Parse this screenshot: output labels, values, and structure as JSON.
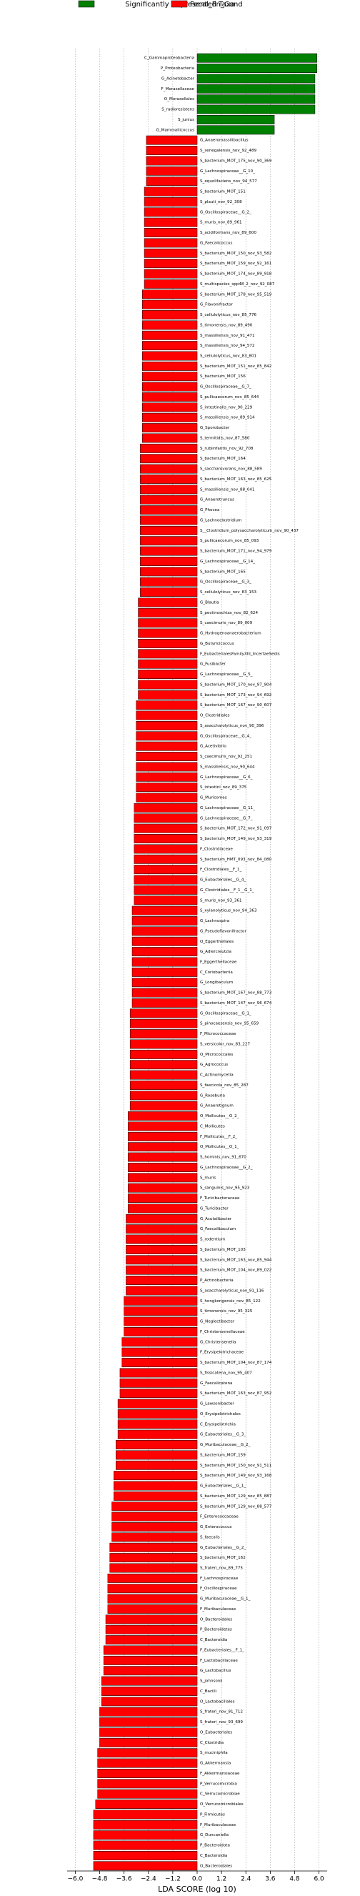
{
  "chart_data": {
    "type": "barh",
    "title": "Significantly Represented Taxa",
    "xlabel": "LDA SCORE (log 10)",
    "xlim": [
      -6.4,
      6.4
    ],
    "xticks": [
      {
        "value": -6.0,
        "label": "−6.0"
      },
      {
        "value": -4.8,
        "label": "−4.8"
      },
      {
        "value": -3.6,
        "label": "−3.6"
      },
      {
        "value": -2.4,
        "label": "−2.4"
      },
      {
        "value": -1.2,
        "label": "−1.2"
      },
      {
        "value": 0,
        "label": "0.0"
      },
      {
        "value": 1.2,
        "label": "1.2"
      },
      {
        "value": 2.4,
        "label": "2.4"
      },
      {
        "value": 3.6,
        "label": "3.6"
      },
      {
        "value": 4.8,
        "label": "4.8"
      },
      {
        "value": 6.0,
        "label": "6.0"
      }
    ],
    "grid": true,
    "series": [
      {
        "color": "#008000",
        "categories": [
          "C_Gammaproteobacteria",
          "P_Proteobacteria",
          "G_Acinetobacter",
          "F_Moraxellaceae",
          "O_Moraxellales",
          "S_radioresistens",
          "S_junius",
          "G_Mammaliicoccus"
        ],
        "values": [
          5.9,
          5.9,
          5.8,
          5.8,
          5.8,
          5.8,
          3.8,
          3.8
        ]
      },
      {
        "name": "Fecal_Fn_Cond",
        "color": "#ff0000",
        "categories": [
          "G_Anaeromassilibacillus",
          "S_senegalensis_nov_92_489",
          "S_bacterium_MOT_175_nov_90_369",
          "G_Lachnospiraceae__G_10_",
          "S_equolifaciens_nov_94_577",
          "S_bacterium_MOT_151",
          "S_plauti_nov_92_308",
          "G_Oscillospiraceae__G_2_",
          "S_muris_nov_89_961",
          "S_acidiformans_nov_89_600",
          "G_Faecalicoccus",
          "S_bacterium_MOT_150_nov_93_582",
          "S_bacterium_MOT_159_nov_92_161",
          "S_bacterium_MOT_174_nov_89_918",
          "S_multispecies_spp48_2_nov_92_087",
          "S_bacterium_MOT_178_nov_95_519",
          "G_Flavonifractor",
          "S_cellulolyticus_nov_85_776",
          "S_timonensis_nov_89_490",
          "S_massiliensis_nov_91_471",
          "S_massiliensis_nov_94_572",
          "S_cellulolyticus_nov_83_801",
          "S_bacterium_MOT_151_nov_85_842",
          "S_bacterium_MOT_156",
          "G_Oscillospiraceae__G_7_",
          "S_pullicaecorum_nov_85_644",
          "S_intestinalis_nov_90_229",
          "S_massiliensis_nov_89_914",
          "G_Sporobacter",
          "S_termitidis_nov_87_580",
          "S_rubiinfantis_nov_92_708",
          "S_bacterium_MOT_164",
          "S_saccharovorans_nov_88_589",
          "S_bacterium_MOT_163_nov_85_625",
          "S_massiliensis_nov_88_041",
          "G_Anaerotruncus",
          "G_Phocea",
          "G_Lachnoclostridium",
          "S__Clostridium_polysaccharolyticum_nov_90_437",
          "S_pullicaecorum_nov_85_093",
          "S_bacterium_MOT_171_nov_94_979",
          "G_Lachnospiraceae__G_14_",
          "S_bacterium_MOT_165",
          "G_Oscillospiraceae__G_3_",
          "S_cellulolyticus_nov_83_153",
          "G_Blautia",
          "S_pectinoschiza_nov_82_624",
          "S_caecimuris_nov_89_009",
          "G_Hydrogenoanaerobacterium",
          "G_Butyricicoccus",
          "F_EubacterialesFamilyXIII_IncertaeSedis",
          "G_Fusibacter",
          "G_Lachnospiraceae__G_5_",
          "S_bacterium_MOT_170_nov_97_904",
          "S_bacterium_MOT_173_nov_94_692",
          "S_bacterium_MOT_167_nov_90_607",
          "O_Clostridiales",
          "S_asaccharolyticus_nov_90_396",
          "G_Oscillospiraceae__G_4_",
          "G_Acetivibrio",
          "S_caecimuris_nov_92_251",
          "S_massiliensis_nov_90_644",
          "G_Lachnospiraceae__G_6_",
          "S_intestini_nov_89_375",
          "G_Muricomes",
          "G_Lachnospiraceae__G_11_",
          "G_Lachnospiraceae__G_7_",
          "S_bacterium_MOT_172_nov_91_097",
          "S_bacterium_MOT_149_nov_93_319",
          "F_Clostridiaceae",
          "S_bacterium_HMT_093_nov_84_080",
          "F_Clostridiales__F_1_",
          "G_Eubacteriales__G_4_",
          "G_Clostridiales__F_1__G_1_",
          "S_muris_nov_93_361",
          "S_xylanolyticus_nov_94_363",
          "G_Lachnospira",
          "G_Pseudoflavonifractor",
          "O_Eggerthellales",
          "G_Adlercreutzia",
          "F_Eggerthellaceae",
          "C_Coriobacteriia",
          "G_Longibaculum",
          "S_bacterium_MOT_167_nov_88_773",
          "S_bacterium_MOT_147_nov_96_674",
          "G_Oscillospiraceae__G_1_",
          "S_pinocaesensis_nov_95_659",
          "F_Micrococcaceae",
          "S_versicolor_nov_83_227",
          "O_Micrococcales",
          "G_Agrococcus",
          "C_Actinomycetia",
          "S_faecicola_nov_85_287",
          "G_Roseburia",
          "G_Anaerotignum",
          "O_Mollicutes__O_2_",
          "C_Mollicutes",
          "F_Mollicutes__F_2_",
          "O_Mollicutes__O_1_",
          "S_hominis_nov_91_670",
          "G_Lachnospiraceae__G_2_",
          "S_muris",
          "S_sanguinis_nov_95_923",
          "F_Turicibacteraceae",
          "G_Turicibacter",
          "G_Acutalibacter",
          "G_Faecalibaculum",
          "S_rodentium",
          "S_bacterium_MOT_103",
          "S_bacterium_MOT_163_nov_85_944",
          "S_bacterium_MOT_104_nov_89_022",
          "P_Actinobacteria",
          "S_asaccharolyticus_nov_91_116",
          "S_hongkongensis_nov_85_122",
          "S_timonensis_nov_95_325",
          "G_Neglectibacter",
          "F_Christensenellaceae",
          "G_Christensenella",
          "F_Erysipelotrichaceae",
          "S_bacterium_MOT_104_nov_87_174",
          "S_fissicatena_nov_95_407",
          "G_Faecalicatena",
          "S_bacterium_MOT_163_nov_87_952",
          "G_Lawsonibacter",
          "O_Erysipelotrichales",
          "C_Erysipelotrichia",
          "G_Eubacteriales__G_3_",
          "G_Muribaculaceae__G_2_",
          "S_bacterium_MOT_159",
          "S_bacterium_MOT_150_nov_91_511",
          "S_bacterium_MOT_149_nov_93_168",
          "G_Eubacteriales__G_1_",
          "S_bacterium_MOT_129_nov_85_887",
          "S_bacterium_MOT_129_nov_88_577",
          "F_Enterococcaceae",
          "G_Enterococcus",
          "S_faecalis",
          "G_Eubacteriales__G_2_",
          "S_bacterium_MOT_162",
          "S_frateri_nov_89_775",
          "F_Lachnospiraceae",
          "F_Oscillospiraceae",
          "G_Muribaculaceae__G_1_",
          "F_Muribaculaceae",
          "O_Bacteroidales",
          "P_Bacteroidetes",
          "C_Bacteroidia",
          "F_Eubacteriales__F_1_",
          "F_Lactobacillaceae",
          "G_Lactobacillus",
          "S_johnsonii",
          "C_Bacilli",
          "O_Lactobacillales",
          "S_frateri_nov_91_712",
          "S_frateri_nov_93_699",
          "O_Eubacteriales",
          "C_Clostridia",
          "S_muciniphila",
          "G_Akkermansia",
          "F_Akkermansiaceae",
          "P_Verrucomicrobia",
          "C_Verrucomicrobiae",
          "O_Verrucomicrobiales",
          "P_Firmicutes",
          "F_Muribaculaceae",
          "G_Duncaniella",
          "P_Bacteroidota",
          "C_Bacteroidia",
          "O_Bacteroidales"
        ],
        "values": [
          -2.5,
          -2.5,
          -2.5,
          -2.5,
          -2.5,
          -2.6,
          -2.6,
          -2.6,
          -2.6,
          -2.6,
          -2.6,
          -2.6,
          -2.6,
          -2.6,
          -2.6,
          -2.7,
          -2.7,
          -2.7,
          -2.7,
          -2.7,
          -2.7,
          -2.7,
          -2.7,
          -2.7,
          -2.7,
          -2.7,
          -2.7,
          -2.7,
          -2.7,
          -2.7,
          -2.8,
          -2.8,
          -2.8,
          -2.8,
          -2.8,
          -2.8,
          -2.8,
          -2.8,
          -2.8,
          -2.8,
          -2.8,
          -2.8,
          -2.8,
          -2.8,
          -2.8,
          -2.9,
          -2.9,
          -2.9,
          -2.9,
          -2.9,
          -2.9,
          -2.9,
          -2.9,
          -2.9,
          -2.9,
          -3.0,
          -3.0,
          -3.0,
          -3.0,
          -3.0,
          -3.0,
          -3.0,
          -3.0,
          -3.0,
          -3.0,
          -3.1,
          -3.1,
          -3.1,
          -3.1,
          -3.1,
          -3.1,
          -3.1,
          -3.1,
          -3.1,
          -3.1,
          -3.2,
          -3.2,
          -3.2,
          -3.2,
          -3.2,
          -3.2,
          -3.2,
          -3.2,
          -3.2,
          -3.2,
          -3.3,
          -3.3,
          -3.3,
          -3.3,
          -3.3,
          -3.3,
          -3.3,
          -3.3,
          -3.3,
          -3.3,
          -3.4,
          -3.4,
          -3.4,
          -3.4,
          -3.4,
          -3.4,
          -3.4,
          -3.4,
          -3.4,
          -3.4,
          -3.5,
          -3.5,
          -3.5,
          -3.5,
          -3.5,
          -3.5,
          -3.5,
          -3.5,
          -3.6,
          -3.6,
          -3.6,
          -3.6,
          -3.7,
          -3.7,
          -3.7,
          -3.8,
          -3.8,
          -3.8,
          -3.9,
          -3.9,
          -3.9,
          -3.9,
          -4.0,
          -4.0,
          -4.0,
          -4.1,
          -4.1,
          -4.1,
          -4.2,
          -4.2,
          -4.2,
          -4.2,
          -4.3,
          -4.3,
          -4.3,
          -4.4,
          -4.4,
          -4.4,
          -4.4,
          -4.5,
          -4.5,
          -4.5,
          -4.6,
          -4.6,
          -4.6,
          -4.7,
          -4.7,
          -4.7,
          -4.8,
          -4.8,
          -4.8,
          -4.8,
          -4.9,
          -4.9,
          -4.9,
          -4.9,
          -4.9,
          -5.0,
          -5.1,
          -5.1,
          -5.1,
          -5.1,
          -5.1,
          -5.1
        ]
      }
    ]
  }
}
